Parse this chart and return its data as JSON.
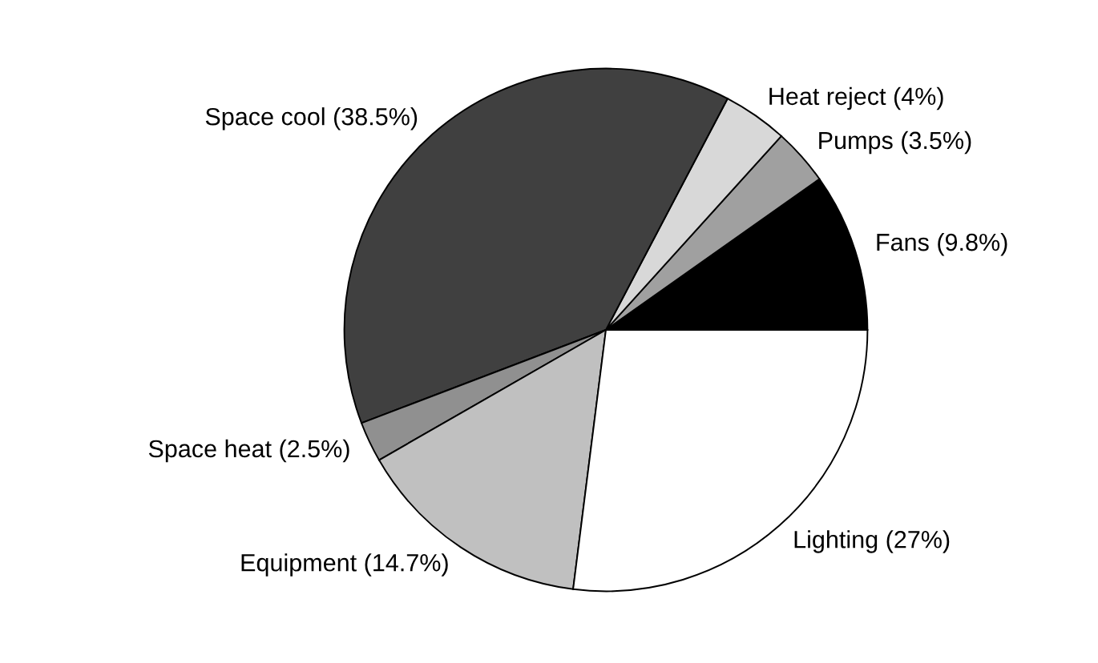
{
  "chart_data": {
    "type": "pie",
    "categories": [
      "Fans (9.8%)",
      "Pumps (3.5%)",
      "Heat reject (4%)",
      "Space cool (38.5%)",
      "Space heat (2.5%)",
      "Equipment (14.7%)",
      "Lighting (27%)"
    ],
    "values": [
      9.8,
      3.5,
      4,
      38.5,
      2.5,
      14.7,
      27
    ],
    "colors": [
      "#000000",
      "#a0a0a0",
      "#d8d8d8",
      "#404040",
      "#909090",
      "#c0c0c0",
      "#ffffff"
    ]
  }
}
